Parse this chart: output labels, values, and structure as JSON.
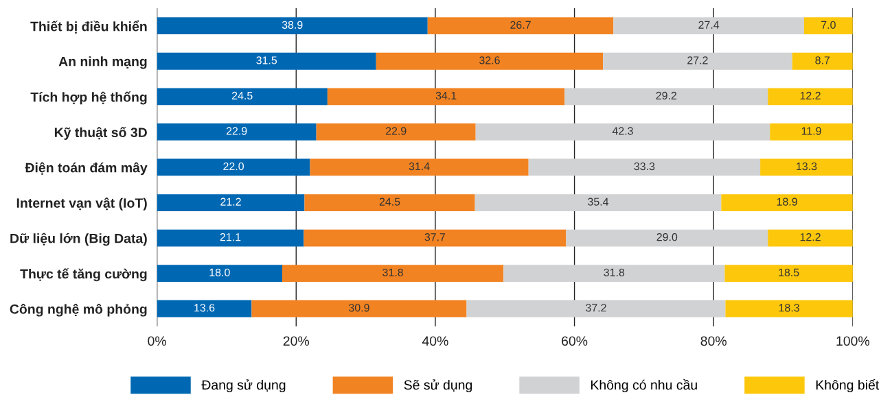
{
  "chart_data": {
    "type": "bar",
    "orientation": "horizontal",
    "stacked": true,
    "grid": "x",
    "legend": "bottom",
    "categories": [
      "Thiết bị điều khiển",
      "An ninh mạng",
      "Tích hợp hệ thống",
      "Kỹ thuật số 3D",
      "Điện toán đám mây",
      "Internet vạn vật (IoT)",
      "Dữ liệu lớn (Big Data)",
      "Thực tế tăng cường",
      "Công nghệ mô phỏng"
    ],
    "series": [
      {
        "name": "Đang sử dụng",
        "color": "#0068b3",
        "values": [
          38.9,
          31.5,
          24.5,
          22.9,
          22.0,
          21.2,
          21.1,
          18.0,
          13.6
        ],
        "value_labels": [
          "38.9",
          "31.5",
          "24.5",
          "22.9",
          "22.0",
          "21.2",
          "21.1",
          "18.0",
          "13.6"
        ]
      },
      {
        "name": "Sẽ sử dụng",
        "color": "#f28322",
        "values": [
          26.7,
          32.6,
          34.1,
          22.9,
          31.4,
          24.5,
          37.7,
          31.8,
          30.9
        ],
        "value_labels": [
          "26.7",
          "32.6",
          "34.1",
          "22.9",
          "31.4",
          "24.5",
          "37.7",
          "31.8",
          "30.9"
        ]
      },
      {
        "name": "Không có nhu cầu",
        "color": "#d1d2d4",
        "values": [
          27.4,
          27.2,
          29.2,
          42.3,
          33.3,
          35.4,
          29.0,
          31.8,
          37.2
        ],
        "value_labels": [
          "27.4",
          "27.2",
          "29.2",
          "42.3",
          "33.3",
          "35.4",
          "29.0",
          "31.8",
          "37.2"
        ]
      },
      {
        "name": "Không biết",
        "color": "#fdc70c",
        "values": [
          7.0,
          8.7,
          12.2,
          11.9,
          13.3,
          18.9,
          12.2,
          18.5,
          18.3
        ],
        "value_labels": [
          "7.0",
          "8.7",
          "12.2",
          "11.9",
          "13.3",
          "18.9",
          "12.2",
          "18.5",
          "18.3"
        ]
      }
    ],
    "xlim": [
      0,
      100
    ],
    "xticks": [
      {
        "value": 0,
        "label": "0%"
      },
      {
        "value": 20,
        "label": "20%"
      },
      {
        "value": 40,
        "label": "40%"
      },
      {
        "value": 60,
        "label": "60%"
      },
      {
        "value": 80,
        "label": "80%"
      },
      {
        "value": 100,
        "label": "100%"
      }
    ]
  }
}
